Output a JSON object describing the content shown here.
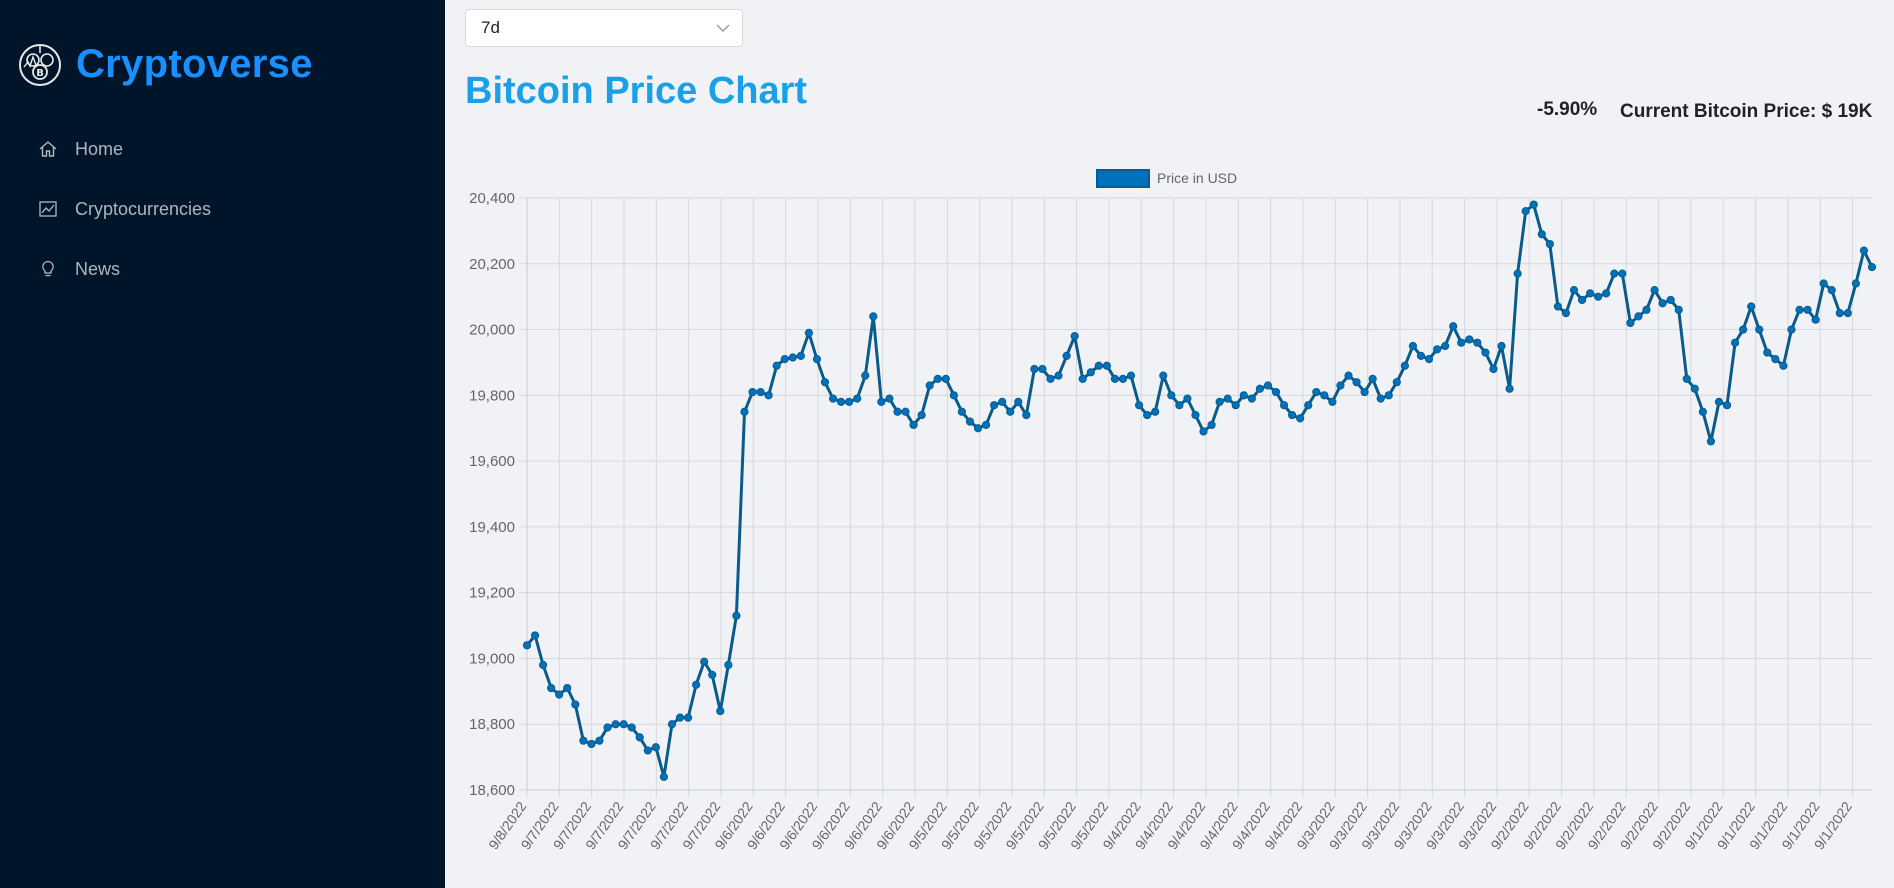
{
  "sidebar": {
    "brand": "Cryptoverse",
    "logo_icon": "crypto-coins-logo-icon",
    "items": [
      {
        "label": "Home",
        "icon": "home-icon"
      },
      {
        "label": "Cryptocurrencies",
        "icon": "line-chart-icon"
      },
      {
        "label": "News",
        "icon": "bulb-icon"
      }
    ]
  },
  "controls": {
    "period_select": {
      "value": "7d",
      "icon": "chevron-down-icon"
    }
  },
  "header": {
    "title": "Bitcoin Price Chart",
    "change": "-5.90%",
    "current_price": "Current Bitcoin Price: $ 19K"
  },
  "colors": {
    "sidebar_bg": "#001529",
    "brand": "#1890ff",
    "title": "#1aa0e6",
    "line": "#0b5b8a",
    "point": "#0071bd"
  },
  "chart_data": {
    "type": "line",
    "legend": {
      "label": "Price in USD",
      "position": "top-center"
    },
    "ylim": [
      18600,
      20400
    ],
    "y_ticks": [
      18600,
      18800,
      19000,
      19200,
      19400,
      19600,
      19800,
      20000,
      20200,
      20400
    ],
    "y_tick_labels": [
      "18,600",
      "18,800",
      "19,000",
      "19,200",
      "19,400",
      "19,600",
      "19,800",
      "20,000",
      "20,200",
      "20,400"
    ],
    "grid": true,
    "x_tick_labels": [
      "9/8/2022",
      "9/7/2022",
      "9/7/2022",
      "9/7/2022",
      "9/7/2022",
      "9/7/2022",
      "9/7/2022",
      "9/6/2022",
      "9/6/2022",
      "9/6/2022",
      "9/6/2022",
      "9/6/2022",
      "9/6/2022",
      "9/5/2022",
      "9/5/2022",
      "9/5/2022",
      "9/5/2022",
      "9/5/2022",
      "9/5/2022",
      "9/4/2022",
      "9/4/2022",
      "9/4/2022",
      "9/4/2022",
      "9/4/2022",
      "9/4/2022",
      "9/3/2022",
      "9/3/2022",
      "9/3/2022",
      "9/3/2022",
      "9/3/2022",
      "9/3/2022",
      "9/2/2022",
      "9/2/2022",
      "9/2/2022",
      "9/2/2022",
      "9/2/2022",
      "9/2/2022",
      "9/1/2022",
      "9/1/2022",
      "9/1/2022",
      "9/1/2022",
      "9/1/2022"
    ],
    "values": [
      19040,
      19070,
      18980,
      18910,
      18890,
      18910,
      18860,
      18750,
      18740,
      18750,
      18790,
      18800,
      18800,
      18790,
      18760,
      18720,
      18730,
      18640,
      18800,
      18820,
      18820,
      18920,
      18990,
      18950,
      18840,
      18980,
      19130,
      19750,
      19810,
      19810,
      19800,
      19890,
      19910,
      19915,
      19920,
      19990,
      19910,
      19840,
      19790,
      19780,
      19780,
      19790,
      19860,
      20040,
      19780,
      19790,
      19750,
      19750,
      19710,
      19740,
      19830,
      19850,
      19850,
      19800,
      19750,
      19720,
      19700,
      19710,
      19770,
      19780,
      19750,
      19780,
      19740,
      19880,
      19880,
      19850,
      19860,
      19920,
      19980,
      19850,
      19870,
      19890,
      19890,
      19850,
      19850,
      19860,
      19770,
      19740,
      19750,
      19860,
      19800,
      19770,
      19790,
      19740,
      19690,
      19710,
      19780,
      19790,
      19770,
      19800,
      19790,
      19820,
      19830,
      19810,
      19770,
      19740,
      19730,
      19770,
      19810,
      19800,
      19780,
      19830,
      19860,
      19840,
      19810,
      19850,
      19790,
      19800,
      19840,
      19890,
      19950,
      19920,
      19910,
      19940,
      19950,
      20010,
      19960,
      19970,
      19960,
      19930,
      19880,
      19950,
      19820,
      20170,
      20360,
      20380,
      20290,
      20260,
      20070,
      20050,
      20120,
      20090,
      20110,
      20100,
      20110,
      20170,
      20170,
      20020,
      20040,
      20060,
      20120,
      20080,
      20090,
      20060,
      19850,
      19820,
      19750,
      19660,
      19780,
      19770,
      19960,
      20000,
      20070,
      20000,
      19930,
      19910,
      19890,
      20000,
      20060,
      20060,
      20030,
      20140,
      20120,
      20050,
      20050,
      20140,
      20240,
      20190
    ]
  }
}
